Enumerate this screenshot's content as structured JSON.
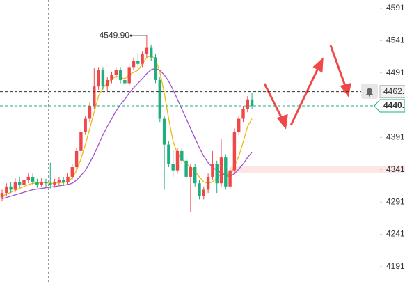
{
  "chart_data": {
    "type": "candlestick",
    "ohlc": [
      [
        4298,
        4310,
        4292,
        4305
      ],
      [
        4305,
        4320,
        4300,
        4315
      ],
      [
        4315,
        4322,
        4305,
        4310
      ],
      [
        4310,
        4328,
        4306,
        4322
      ],
      [
        4322,
        4330,
        4313,
        4318
      ],
      [
        4318,
        4331,
        4314,
        4325
      ],
      [
        4325,
        4336,
        4320,
        4330
      ],
      [
        4330,
        4335,
        4317,
        4322
      ],
      [
        4322,
        4327,
        4313,
        4318
      ],
      [
        4318,
        4328,
        4314,
        4322
      ],
      [
        4322,
        4327,
        4314,
        4320
      ],
      [
        4320,
        4352,
        4312,
        4318
      ],
      [
        4318,
        4327,
        4313,
        4322
      ],
      [
        4322,
        4330,
        4317,
        4325
      ],
      [
        4325,
        4330,
        4316,
        4322
      ],
      [
        4322,
        4336,
        4318,
        4330
      ],
      [
        4330,
        4350,
        4325,
        4345
      ],
      [
        4345,
        4375,
        4340,
        4370
      ],
      [
        4370,
        4405,
        4365,
        4400
      ],
      [
        4400,
        4425,
        4395,
        4420
      ],
      [
        4420,
        4445,
        4415,
        4440
      ],
      [
        4440,
        4498,
        4435,
        4470
      ],
      [
        4470,
        4500,
        4465,
        4495
      ],
      [
        4495,
        4500,
        4465,
        4470
      ],
      [
        4470,
        4485,
        4463,
        4480
      ],
      [
        4480,
        4493,
        4475,
        4488
      ],
      [
        4488,
        4500,
        4483,
        4495
      ],
      [
        4495,
        4500,
        4475,
        4480
      ],
      [
        4480,
        4486,
        4470,
        4475
      ],
      [
        4475,
        4505,
        4470,
        4500
      ],
      [
        4500,
        4515,
        4495,
        4510
      ],
      [
        4510,
        4522,
        4500,
        4505
      ],
      [
        4505,
        4525,
        4500,
        4520
      ],
      [
        4520,
        4549.9,
        4515,
        4530
      ],
      [
        4530,
        4535,
        4510,
        4515
      ],
      [
        4515,
        4520,
        4475,
        4480
      ],
      [
        4480,
        4485,
        4415,
        4420
      ],
      [
        4420,
        4425,
        4310,
        4380
      ],
      [
        4380,
        4385,
        4345,
        4350
      ],
      [
        4350,
        4372,
        4330,
        4340
      ],
      [
        4340,
        4375,
        4335,
        4370
      ],
      [
        4370,
        4375,
        4350,
        4355
      ],
      [
        4355,
        4360,
        4325,
        4330
      ],
      [
        4330,
        4350,
        4275,
        4345
      ],
      [
        4345,
        4350,
        4315,
        4320
      ],
      [
        4320,
        4325,
        4295,
        4300
      ],
      [
        4300,
        4315,
        4295,
        4310
      ],
      [
        4310,
        4335,
        4305,
        4330
      ],
      [
        4330,
        4370,
        4325,
        4350
      ],
      [
        4350,
        4355,
        4305,
        4320
      ],
      [
        4320,
        4388,
        4315,
        4360
      ],
      [
        4360,
        4365,
        4310,
        4315
      ],
      [
        4315,
        4345,
        4310,
        4340
      ],
      [
        4340,
        4405,
        4335,
        4400
      ],
      [
        4400,
        4425,
        4395,
        4420
      ],
      [
        4420,
        4440,
        4415,
        4435
      ],
      [
        4435,
        4455,
        4430,
        4450
      ],
      [
        4450,
        4460,
        4435,
        4440
      ]
    ],
    "up_color": "#f04848",
    "down_color": "#1fae7e",
    "series": [
      {
        "color": "#f0b90b",
        "values": [
          4300,
          4303,
          4306,
          4309,
          4312,
          4315,
          4318,
          4320,
          4320,
          4321,
          4321,
          4320,
          4320,
          4321,
          4321,
          4323,
          4328,
          4340,
          4358,
          4380,
          4405,
          4430,
          4455,
          4468,
          4475,
          4481,
          4486,
          4484,
          4482,
          4488,
          4492,
          4495,
          4505,
          4515,
          4518,
          4512,
          4492,
          4460,
          4420,
          4385,
          4366,
          4358,
          4350,
          4345,
          4338,
          4330,
          4322,
          4320,
          4322,
          4328,
          4335,
          4335,
          4333,
          4346,
          4362,
          4384,
          4408,
          4420
        ]
      },
      {
        "color": "#a050d0",
        "values": [
          4296,
          4298,
          4300,
          4302,
          4304,
          4306,
          4308,
          4310,
          4311,
          4312,
          4313,
          4314,
          4315,
          4316,
          4317,
          4318,
          4320,
          4325,
          4332,
          4340,
          4352,
          4365,
          4380,
          4395,
          4408,
          4420,
          4432,
          4442,
          4450,
          4460,
          4468,
          4475,
          4482,
          4490,
          4496,
          4498,
          4495,
          4488,
          4478,
          4465,
          4450,
          4435,
          4420,
          4405,
          4390,
          4375,
          4362,
          4352,
          4345,
          4340,
          4336,
          4332,
          4330,
          4335,
          4342,
          4350,
          4360,
          4368
        ]
      }
    ],
    "peak_label": "4549.90",
    "price_lines": [
      {
        "value": 4462,
        "label": "4462.",
        "color": "#333333"
      },
      {
        "value": 4440,
        "label": "4440.",
        "color": "#1fae7e"
      }
    ],
    "ylim": [
      4167,
      4604
    ],
    "yticks": [
      4591,
      4541,
      4491,
      4391,
      4341,
      4291,
      4241,
      4191
    ]
  }
}
